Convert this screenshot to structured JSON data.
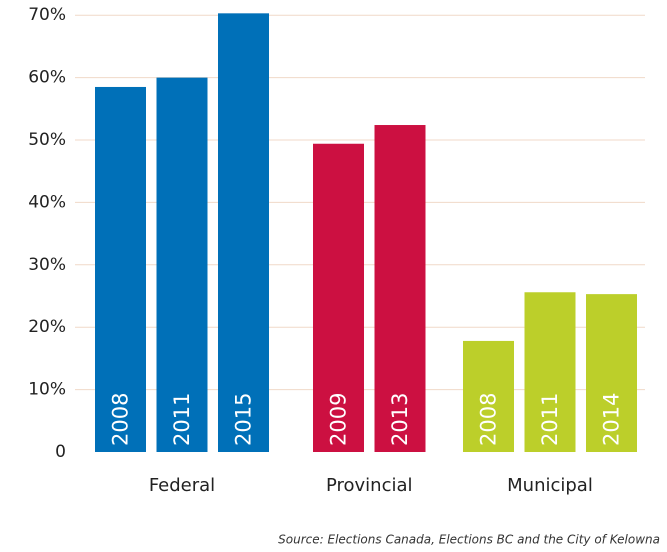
{
  "chart_data": {
    "type": "bar",
    "ylim": [
      0,
      71
    ],
    "yticks": [
      0,
      {
        "value": 10,
        "label": "10%"
      },
      {
        "value": 20,
        "label": "20%"
      },
      {
        "value": 30,
        "label": "30%"
      },
      {
        "value": 40,
        "label": "40%"
      },
      {
        "value": 50,
        "label": "50%"
      },
      {
        "value": 60,
        "label": "60%"
      },
      {
        "value": 70,
        "label": "70%"
      }
    ],
    "grid": true,
    "series": [
      {
        "name": "Federal",
        "color": "#0070b8",
        "categories": [
          "2008",
          "2011",
          "2015"
        ],
        "values": [
          58.5,
          60,
          70.3
        ]
      },
      {
        "name": "Provincial",
        "color": "#cc1041",
        "categories": [
          "2009",
          "2013"
        ],
        "values": [
          49.4,
          52.4
        ]
      },
      {
        "name": "Municipal",
        "color": "#bccf2a",
        "categories": [
          "2008",
          "2011",
          "2014"
        ],
        "values": [
          17.8,
          25.6,
          25.3
        ]
      }
    ],
    "source": "Source:  Elections Canada, Elections BC and the City of Kelowna"
  }
}
